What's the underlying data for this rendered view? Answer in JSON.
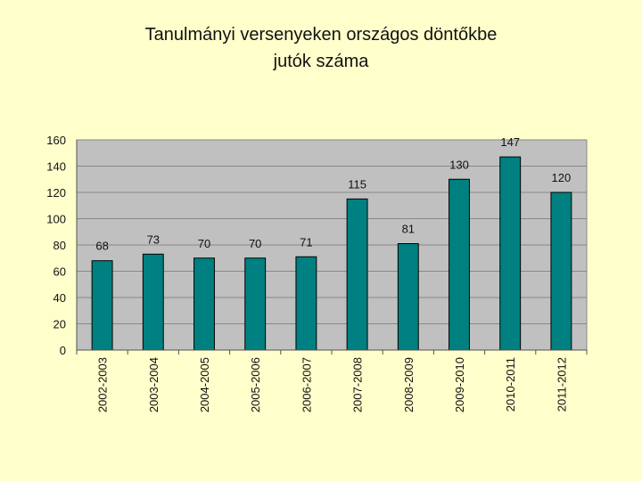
{
  "chart_data": {
    "type": "bar",
    "title": [
      "Tanulmányi versenyeken országos döntőkbe",
      "jutók száma"
    ],
    "categories": [
      "2002-2003",
      "2003-2004",
      "2004-2005",
      "2005-2006",
      "2006-2007",
      "2007-2008",
      "2008-2009",
      "2009-2010",
      "2010-2011",
      "2011-2012"
    ],
    "values": [
      68,
      73,
      70,
      70,
      71,
      115,
      81,
      130,
      147,
      120
    ],
    "yticks": [
      0,
      20,
      40,
      60,
      80,
      100,
      120,
      140,
      160
    ],
    "ylim": [
      0,
      160
    ],
    "grid": true,
    "legend": "none",
    "xlabel": "",
    "ylabel": "",
    "colors": {
      "bar": "#008080",
      "bar_edge": "#000000",
      "plot_bg": "#c0c0c0",
      "grid": "#888888",
      "page_bg": "#ffffcc"
    }
  }
}
